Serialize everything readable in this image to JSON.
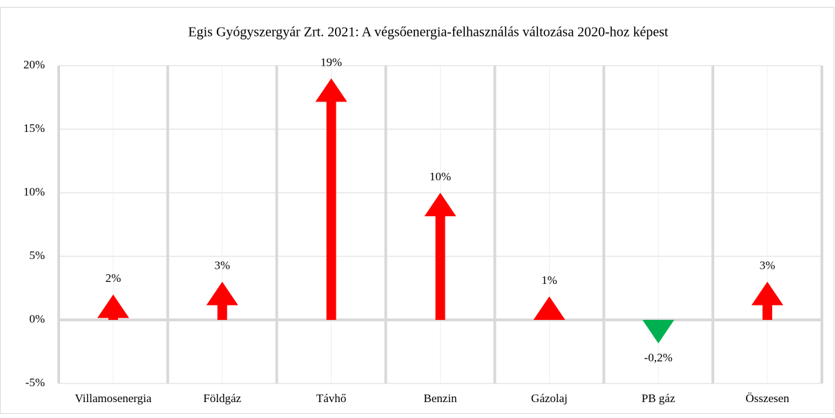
{
  "chart_data": {
    "type": "arrow",
    "title": "Egis Gyógyszergyár Zrt. 2021: A végsőenergia-felhasználás változása 2020-hoz képest",
    "categories": [
      "Villamosenergia",
      "Földgáz",
      "Távhő",
      "Benzin",
      "Gázolaj",
      "PB gáz",
      "Összesen"
    ],
    "values": [
      2,
      3,
      19,
      10,
      1,
      -0.2,
      3
    ],
    "value_labels": [
      "2%",
      "3%",
      "19%",
      "10%",
      "1%",
      "-0,2%",
      "3%"
    ],
    "colors": [
      "#ff0000",
      "#ff0000",
      "#ff0000",
      "#ff0000",
      "#ff0000",
      "#00b050",
      "#ff0000"
    ],
    "ylim": [
      -5,
      20
    ],
    "yticks": [
      {
        "value": -5,
        "label": "-5%"
      },
      {
        "value": 0,
        "label": "0%"
      },
      {
        "value": 5,
        "label": "5%"
      },
      {
        "value": 10,
        "label": "10%"
      },
      {
        "value": 15,
        "label": "15%"
      },
      {
        "value": 20,
        "label": "20%"
      }
    ],
    "grid": true
  }
}
